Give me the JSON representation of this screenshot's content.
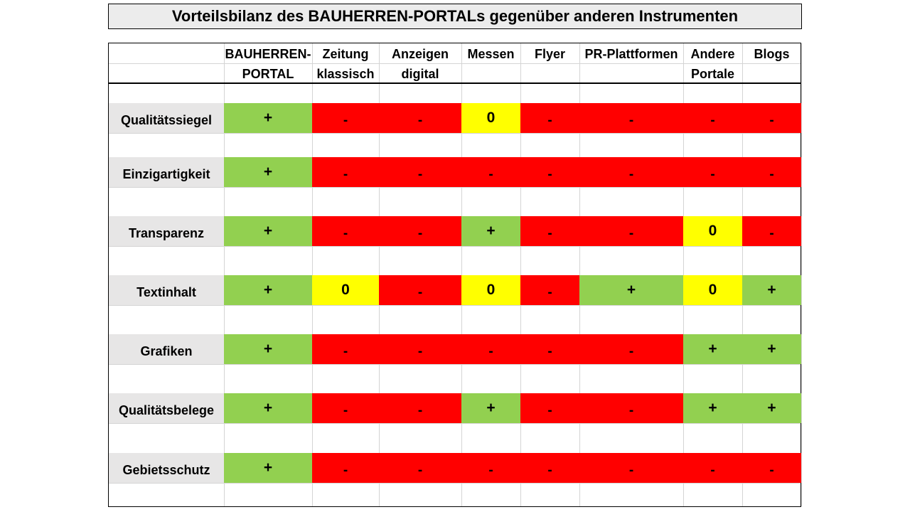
{
  "title": "Vorteilsbilanz des BAUHERREN-PORTALs gegenüber anderen Instrumenten",
  "columns": [
    "BAUHERREN-\nPORTAL",
    "Zeitung\nklassisch",
    "Anzeigen\ndigital",
    "Messen",
    "Flyer",
    "PR-Plattformen",
    "Andere\nPortale",
    "Blogs"
  ],
  "rows": [
    {
      "label": "Qualitätssiegel",
      "values": [
        "+",
        "-",
        "-",
        "0",
        "-",
        "-",
        "-",
        "-"
      ]
    },
    {
      "label": "Einzigartigkeit",
      "values": [
        "+",
        "-",
        "-",
        "-",
        "-",
        "-",
        "-",
        "-"
      ]
    },
    {
      "label": "Transparenz",
      "values": [
        "+",
        "-",
        "-",
        "+",
        "-",
        "-",
        "0",
        "-"
      ]
    },
    {
      "label": "Textinhalt",
      "values": [
        "+",
        "0",
        "-",
        "0",
        "-",
        "+",
        "0",
        "+"
      ]
    },
    {
      "label": "Grafiken",
      "values": [
        "+",
        "-",
        "-",
        "-",
        "-",
        "-",
        "+",
        "+"
      ]
    },
    {
      "label": "Qualitätsbelege",
      "values": [
        "+",
        "-",
        "-",
        "+",
        "-",
        "-",
        "+",
        "+"
      ]
    },
    {
      "label": "Gebietsschutz",
      "values": [
        "+",
        "-",
        "-",
        "-",
        "-",
        "-",
        "-",
        "-"
      ]
    }
  ],
  "colors": {
    "positive": "#92d050",
    "neutral": "#ffff00",
    "negative": "#ff0000",
    "label_background": "#e7e6e6",
    "title_background": "#ececec"
  }
}
